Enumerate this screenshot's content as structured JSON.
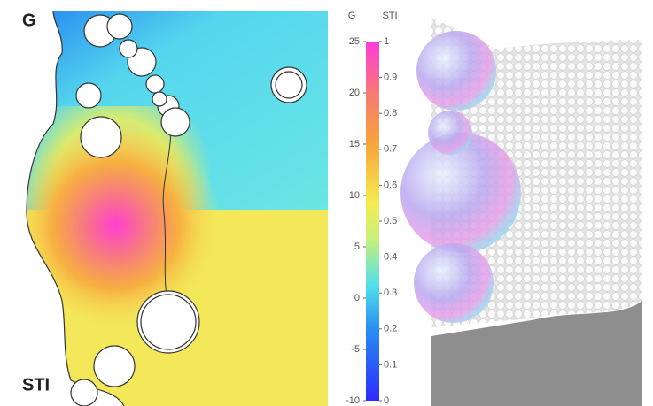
{
  "panel_labels": {
    "top": "G",
    "bottom": "STI"
  },
  "colorbar": {
    "g_label": "G",
    "sti_label": "STI",
    "g_lim": [
      -10,
      25
    ],
    "g_ticks": [
      -10,
      -5,
      0,
      5,
      10,
      15,
      20,
      25
    ],
    "sti_lim": [
      0,
      1
    ],
    "sti_ticks": [
      0,
      0.1,
      0.2,
      0.3,
      0.4,
      0.5,
      0.6,
      0.7,
      0.8,
      0.9,
      1
    ]
  }
}
